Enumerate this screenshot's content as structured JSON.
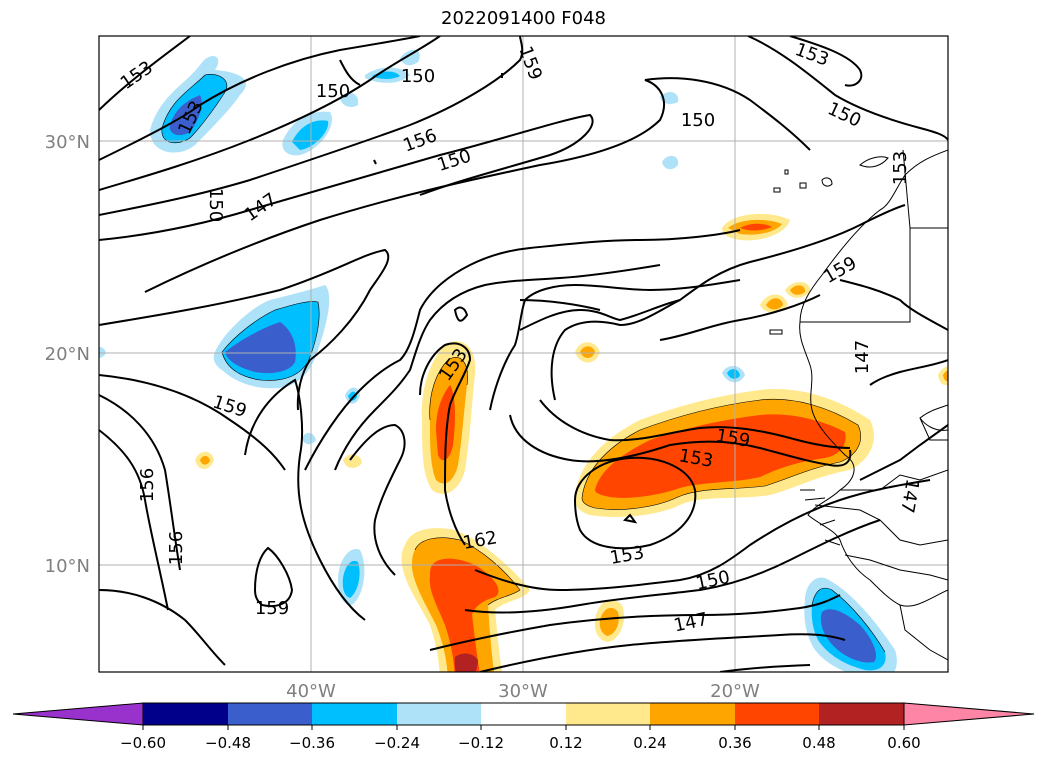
{
  "title": "2022091400 F048",
  "map": {
    "lat_labels": [
      "30°N",
      "20°N",
      "10°N"
    ],
    "lon_labels": [
      "40°W",
      "30°W",
      "20°W"
    ],
    "contour_labels": [
      "153",
      "150",
      "159",
      "153",
      "150",
      "156",
      "150",
      "150",
      "153",
      "150",
      "153",
      "150",
      "147",
      "159",
      "147",
      "153",
      "159",
      "159",
      "153",
      "156",
      "147",
      "162",
      "156",
      "153",
      "150",
      "159",
      "147"
    ]
  },
  "colorbar": {
    "ticks": [
      "−0.60",
      "−0.48",
      "−0.36",
      "−0.24",
      "−0.12",
      "0.12",
      "0.24",
      "0.36",
      "0.48",
      "0.60"
    ],
    "colors": [
      "#9932CC",
      "#00008B",
      "#3A5FCD",
      "#00BFFF",
      "#AEE2F8",
      "#FFFFFF",
      "#FFE98C",
      "#FFA500",
      "#FF4500",
      "#B22222",
      "#FF85A6"
    ]
  }
}
